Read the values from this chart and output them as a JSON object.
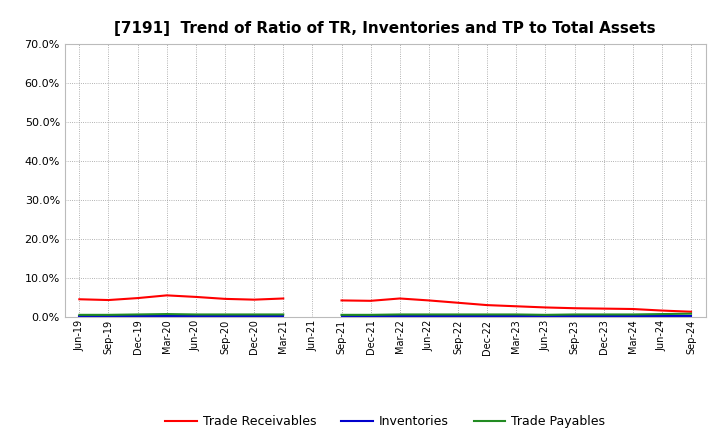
{
  "title": "[7191]  Trend of Ratio of TR, Inventories and TP to Total Assets",
  "x_labels": [
    "Jun-19",
    "Sep-19",
    "Dec-19",
    "Mar-20",
    "Jun-20",
    "Sep-20",
    "Dec-20",
    "Mar-21",
    "Jun-21",
    "Sep-21",
    "Dec-21",
    "Mar-22",
    "Jun-22",
    "Sep-22",
    "Dec-22",
    "Mar-23",
    "Jun-23",
    "Sep-23",
    "Dec-23",
    "Mar-24",
    "Jun-24",
    "Sep-24"
  ],
  "trade_receivables": [
    0.045,
    0.043,
    0.048,
    0.055,
    0.051,
    0.046,
    0.044,
    0.047,
    null,
    0.042,
    0.041,
    0.047,
    0.042,
    0.036,
    0.03,
    0.027,
    0.024,
    0.022,
    0.021,
    0.02,
    0.016,
    0.013
  ],
  "inventories": [
    0.001,
    0.001,
    0.001,
    0.001,
    0.001,
    0.001,
    0.001,
    0.001,
    null,
    0.001,
    0.001,
    0.001,
    0.001,
    0.001,
    0.001,
    0.001,
    0.001,
    0.001,
    0.001,
    0.001,
    0.001,
    0.001
  ],
  "trade_payables": [
    0.005,
    0.005,
    0.006,
    0.007,
    0.006,
    0.006,
    0.006,
    0.006,
    null,
    0.005,
    0.005,
    0.006,
    0.006,
    0.006,
    0.006,
    0.006,
    0.005,
    0.006,
    0.006,
    0.006,
    0.007,
    0.008
  ],
  "color_tr": "#ff0000",
  "color_inv": "#0000cd",
  "color_tp": "#228b22",
  "ylim": [
    0.0,
    0.7
  ],
  "yticks": [
    0.0,
    0.1,
    0.2,
    0.3,
    0.4,
    0.5,
    0.6,
    0.7
  ],
  "background_color": "#ffffff",
  "plot_bg_color": "#ffffff",
  "grid_color": "#999999",
  "title_fontsize": 11,
  "legend_labels": [
    "Trade Receivables",
    "Inventories",
    "Trade Payables"
  ]
}
